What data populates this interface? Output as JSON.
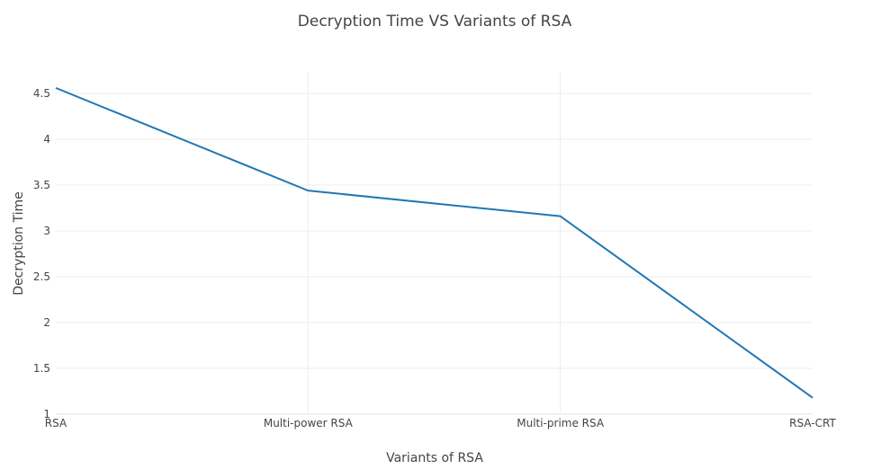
{
  "chart_data": {
    "type": "line",
    "title": "Decryption Time VS Variants of RSA",
    "xlabel": "Variants of RSA",
    "ylabel": "Decryption Time",
    "categories": [
      "RSA",
      "Multi-power RSA",
      "Multi-prime RSA",
      "RSA-CRT"
    ],
    "series": [
      {
        "values": [
          4.56,
          3.44,
          3.16,
          1.18
        ],
        "color": "#1f77b4"
      }
    ],
    "ylim": [
      1,
      4.6
    ],
    "yticks": [
      "1",
      "1.5",
      "2",
      "2.5",
      "3",
      "3.5",
      "4",
      "4.5"
    ],
    "grid": true,
    "legend": "none",
    "colors": {
      "grid": "#eeeeee",
      "text": "#444444",
      "line": "#1f77b4"
    }
  }
}
